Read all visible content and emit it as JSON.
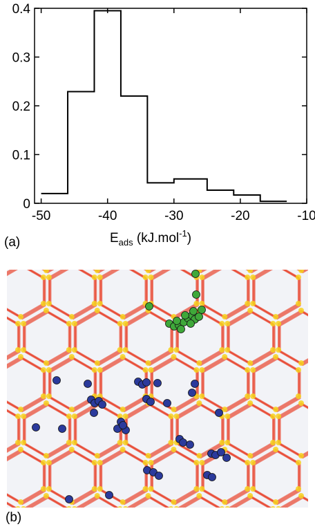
{
  "chart_data": {
    "type": "histogram",
    "xlabel": "E",
    "xlabel_sub": "ads",
    "xlabel_unit_open": " (kJ.mol",
    "xlabel_sup": "-1",
    "xlabel_unit_close": ")",
    "xlim": [
      -51,
      -10
    ],
    "ylim": [
      0,
      0.4
    ],
    "x_ticks": [
      -50,
      -40,
      -30,
      -20,
      -10
    ],
    "y_ticks": [
      0,
      0.1,
      0.2,
      0.3,
      0.4
    ],
    "x_tick_labels": [
      "-50",
      "-40",
      "-30",
      "-20",
      "-10"
    ],
    "y_tick_labels": [
      "0",
      "0.1",
      "0.2",
      "0.3",
      "0.4"
    ],
    "bin_edges": [
      -50,
      -46,
      -42,
      -38,
      -34,
      -30,
      -25,
      -21,
      -17,
      -13
    ],
    "values": [
      0.02,
      0.229,
      0.395,
      0.22,
      0.042,
      0.05,
      0.027,
      0.017,
      0.004
    ],
    "line_color": "#000000"
  },
  "panels": {
    "a_label": "(a)",
    "b_label": "(b)"
  },
  "image_b": {
    "framework_colors": [
      "#e8402a",
      "#f7d21e"
    ],
    "adsorbate_colors": [
      "#2b3a9c",
      "#3fa83a"
    ],
    "background": "#f2f3f7"
  }
}
